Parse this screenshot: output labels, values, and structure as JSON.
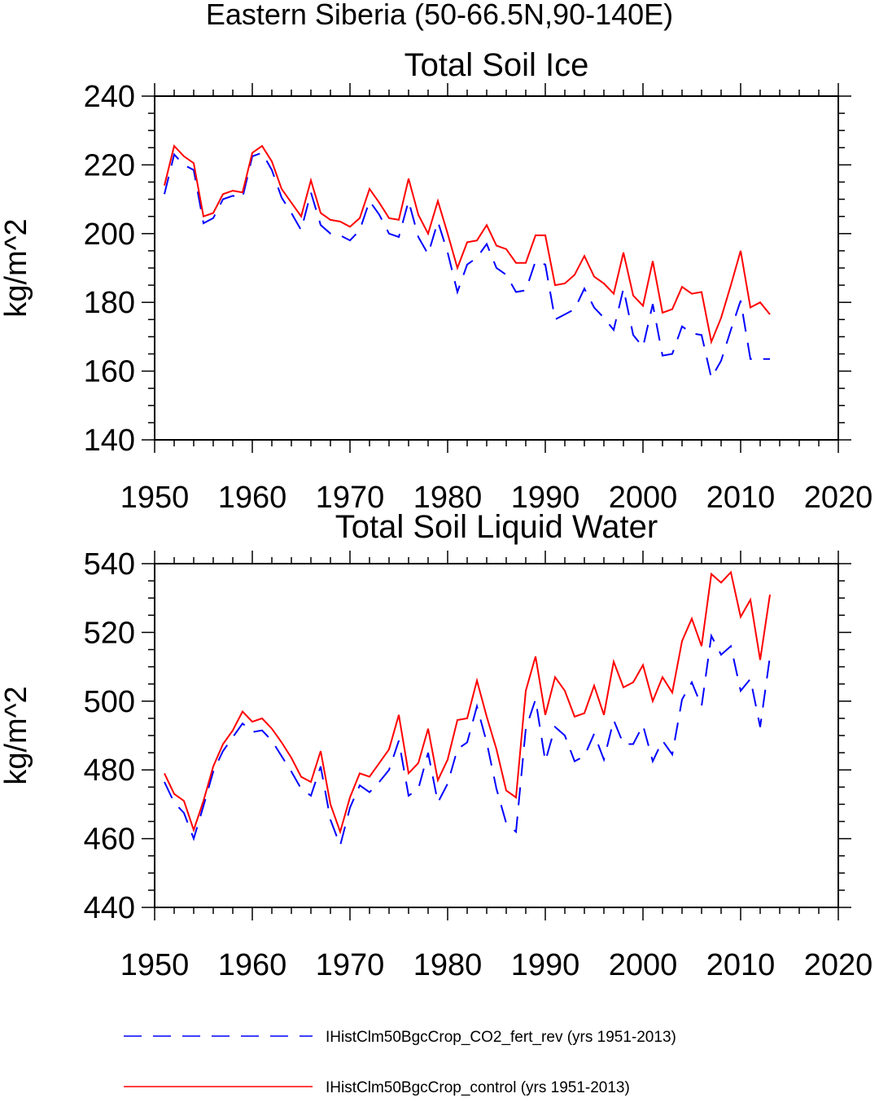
{
  "figure": {
    "title": "Eastern Siberia (50-66.5N,90-140E)"
  },
  "legend": [
    {
      "label": "IHistClm50BgcCrop_CO2_fert_rev (yrs 1951-2013)",
      "color": "#0000ff",
      "style": "dashed"
    },
    {
      "label": "IHistClm50BgcCrop_control (yrs 1951-2013)",
      "color": "#ff0000",
      "style": "solid"
    }
  ],
  "chart_data": [
    {
      "type": "line",
      "title": "Total Soil Ice",
      "xlabel": "",
      "ylabel": "kg/m^2",
      "xlim": [
        1950,
        2020
      ],
      "ylim": [
        140,
        240
      ],
      "xticks": [
        1950,
        1960,
        1970,
        1980,
        1990,
        2000,
        2010,
        2020
      ],
      "yticks": [
        140,
        160,
        180,
        200,
        220,
        240
      ],
      "grid": false,
      "x": [
        1951,
        1952,
        1953,
        1954,
        1955,
        1956,
        1957,
        1958,
        1959,
        1960,
        1961,
        1962,
        1963,
        1964,
        1965,
        1966,
        1967,
        1968,
        1969,
        1970,
        1971,
        1972,
        1973,
        1974,
        1975,
        1976,
        1977,
        1978,
        1979,
        1980,
        1981,
        1982,
        1983,
        1984,
        1985,
        1986,
        1987,
        1988,
        1989,
        1990,
        1991,
        1992,
        1993,
        1994,
        1995,
        1996,
        1997,
        1998,
        1999,
        2000,
        2001,
        2002,
        2003,
        2004,
        2005,
        2006,
        2007,
        2008,
        2009,
        2010,
        2011,
        2012,
        2013
      ],
      "series": [
        {
          "name": "IHistClm50BgcCrop_control (yrs 1951-2013)",
          "color": "#ff0000",
          "dash": "solid",
          "values": [
            214,
            225.5,
            222.5,
            220.5,
            205,
            206,
            211.5,
            212.5,
            212,
            223.5,
            225.5,
            221,
            213,
            209,
            205,
            215.5,
            206,
            204,
            203.5,
            202,
            204.5,
            213,
            209,
            204.5,
            204,
            216,
            205.5,
            200,
            209.5,
            200,
            190,
            197.5,
            198,
            202.5,
            196.5,
            195.5,
            191.5,
            191.5,
            199.5,
            199.5,
            185,
            185.5,
            188,
            193.5,
            187.5,
            185.5,
            182.5,
            194.5,
            182,
            179,
            192,
            177,
            178,
            184.5,
            182.5,
            183,
            168.5,
            175.5,
            185,
            195,
            178.5,
            180,
            176.5
          ]
        },
        {
          "name": "IHistClm50BgcCrop_CO2_fert_rev (yrs 1951-2013)",
          "color": "#0000ff",
          "dash": "dashed",
          "values": [
            211.5,
            223,
            220,
            218.5,
            203,
            204.5,
            210,
            211,
            210.5,
            222.5,
            223.5,
            218.5,
            210.5,
            206,
            201,
            212,
            202.5,
            200,
            199.5,
            198,
            201,
            209.5,
            205.5,
            200,
            199,
            209.5,
            199,
            194,
            203.5,
            194.5,
            183,
            191,
            193,
            197,
            190,
            188,
            183,
            183.5,
            192,
            191,
            175,
            176.5,
            178,
            184,
            178.5,
            175.5,
            172,
            184,
            170.5,
            167,
            179.5,
            164.5,
            165,
            173,
            171,
            170.5,
            158,
            163,
            172,
            180.5,
            163.5,
            163.5,
            163.5
          ]
        }
      ]
    },
    {
      "type": "line",
      "title": "Total Soil Liquid Water",
      "xlabel": "",
      "ylabel": "kg/m^2",
      "xlim": [
        1950,
        2020
      ],
      "ylim": [
        440,
        540
      ],
      "xticks": [
        1950,
        1960,
        1970,
        1980,
        1990,
        2000,
        2010,
        2020
      ],
      "yticks": [
        440,
        460,
        480,
        500,
        520,
        540
      ],
      "grid": false,
      "x": [
        1951,
        1952,
        1953,
        1954,
        1955,
        1956,
        1957,
        1958,
        1959,
        1960,
        1961,
        1962,
        1963,
        1964,
        1965,
        1966,
        1967,
        1968,
        1969,
        1970,
        1971,
        1972,
        1973,
        1974,
        1975,
        1976,
        1977,
        1978,
        1979,
        1980,
        1981,
        1982,
        1983,
        1984,
        1985,
        1986,
        1987,
        1988,
        1989,
        1990,
        1991,
        1992,
        1993,
        1994,
        1995,
        1996,
        1997,
        1998,
        1999,
        2000,
        2001,
        2002,
        2003,
        2004,
        2005,
        2006,
        2007,
        2008,
        2009,
        2010,
        2011,
        2012,
        2013
      ],
      "series": [
        {
          "name": "IHistClm50BgcCrop_control (yrs 1951-2013)",
          "color": "#ff0000",
          "dash": "solid",
          "values": [
            479,
            473,
            471,
            462.5,
            471,
            481,
            487.5,
            491.5,
            497,
            494,
            495,
            492,
            488,
            483.5,
            478,
            476.5,
            485.5,
            470,
            462,
            472,
            479,
            478,
            482,
            486,
            496,
            479,
            482,
            492,
            477,
            483,
            494.5,
            495,
            506,
            495.5,
            486,
            474,
            472,
            503,
            513,
            496,
            507,
            503,
            495.5,
            496.5,
            504.5,
            496,
            511.5,
            504,
            505.5,
            510.5,
            500,
            507,
            502.5,
            517.5,
            524,
            516,
            537,
            534.5,
            537.5,
            524.5,
            529.5,
            512,
            531
          ]
        },
        {
          "name": "IHistClm50BgcCrop_CO2_fert_rev (yrs 1951-2013)",
          "color": "#0000ff",
          "dash": "dashed",
          "values": [
            476.5,
            470.5,
            467.5,
            460,
            469.5,
            479.5,
            485.5,
            489.5,
            493.5,
            491,
            491.5,
            488.5,
            484,
            479.5,
            474.5,
            472.5,
            481,
            465.5,
            458,
            469,
            475.5,
            473.5,
            476.5,
            480,
            488.5,
            472.5,
            474.5,
            485,
            470.5,
            476,
            486,
            488,
            498.5,
            488,
            474.5,
            464.5,
            462,
            492,
            500.5,
            482.5,
            492.5,
            490,
            482.5,
            484,
            490.5,
            483,
            494.5,
            487.5,
            487.5,
            493,
            482.5,
            488.5,
            484.5,
            500.5,
            505.5,
            498.5,
            519,
            513.5,
            516,
            503,
            506.5,
            492.5,
            513
          ]
        }
      ]
    }
  ]
}
